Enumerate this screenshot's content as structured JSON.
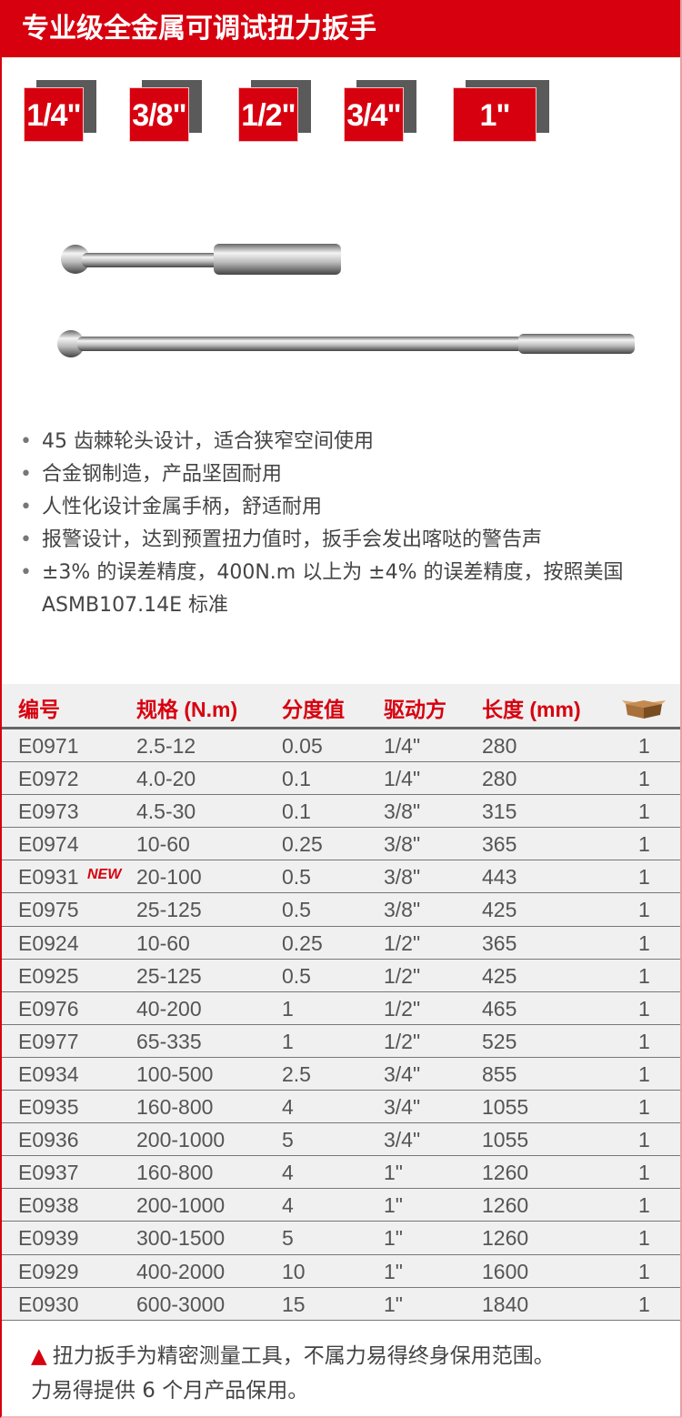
{
  "title": "专业级全金属可调试扭力扳手",
  "drive_sizes": [
    "1/4\"",
    "3/8\"",
    "1/2\"",
    "3/4\"",
    "1\""
  ],
  "features": [
    "45 齿棘轮头设计，适合狭窄空间使用",
    "合金钢制造，产品坚固耐用",
    "人性化设计金属手柄，舒适耐用",
    "报警设计，达到预置扭力值时，扳手会发出喀哒的警告声",
    "±3% 的误差精度，400N.m 以上为 ±4% 的误差精度，按照美国 ASMB107.14E 标准"
  ],
  "table": {
    "headers": [
      "编号",
      "规格 (N.m)",
      "分度值",
      "驱动方",
      "长度 (mm)"
    ],
    "box_icon": "carton-box-icon",
    "new_badge": "NEW",
    "rows": [
      [
        "E0971",
        "2.5-12",
        "0.05",
        "1/4\"",
        "280",
        "1"
      ],
      [
        "E0972",
        "4.0-20",
        "0.1",
        "1/4\"",
        "280",
        "1"
      ],
      [
        "E0973",
        "4.5-30",
        "0.1",
        "3/8\"",
        "315",
        "1"
      ],
      [
        "E0974",
        "10-60",
        "0.25",
        "3/8\"",
        "365",
        "1"
      ],
      [
        "E0931",
        "20-100",
        "0.5",
        "3/8\"",
        "443",
        "1"
      ],
      [
        "E0975",
        "25-125",
        "0.5",
        "3/8\"",
        "425",
        "1"
      ],
      [
        "E0924",
        "10-60",
        "0.25",
        "1/2\"",
        "365",
        "1"
      ],
      [
        "E0925",
        "25-125",
        "0.5",
        "1/2\"",
        "425",
        "1"
      ],
      [
        "E0976",
        "40-200",
        "1",
        "1/2\"",
        "465",
        "1"
      ],
      [
        "E0977",
        "65-335",
        "1",
        "1/2\"",
        "525",
        "1"
      ],
      [
        "E0934",
        "100-500",
        "2.5",
        "3/4\"",
        "855",
        "1"
      ],
      [
        "E0935",
        "160-800",
        "4",
        "3/4\"",
        "1055",
        "1"
      ],
      [
        "E0936",
        "200-1000",
        "5",
        "3/4\"",
        "1055",
        "1"
      ],
      [
        "E0937",
        "160-800",
        "4",
        "1\"",
        "1260",
        "1"
      ],
      [
        "E0938",
        "200-1000",
        "4",
        "1\"",
        "1260",
        "1"
      ],
      [
        "E0939",
        "300-1500",
        "5",
        "1\"",
        "1260",
        "1"
      ],
      [
        "E0929",
        "400-2000",
        "10",
        "1\"",
        "1600",
        "1"
      ],
      [
        "E0930",
        "600-3000",
        "15",
        "1\"",
        "1840",
        "1"
      ]
    ]
  },
  "note": {
    "line1": "扭力扳手为精密测量工具，不属力易得终身保用范围。",
    "line2": "力易得提供 6 个月产品保用。"
  },
  "colors": {
    "brand_red": "#d7000f",
    "row_bg": "#f0f0f0"
  }
}
